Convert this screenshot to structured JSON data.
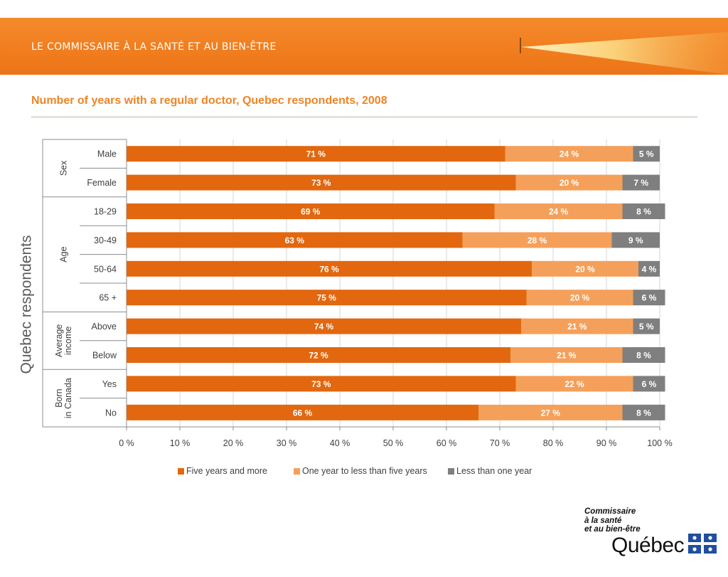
{
  "header": {
    "organization": "LE COMMISSAIRE À LA SANTÉ ET AU BIEN-ÊTRE"
  },
  "chart_data": {
    "type": "bar",
    "orientation": "horizontal",
    "stacked": true,
    "title": "Number of years with a regular doctor, Quebec respondents, 2008",
    "ylabel": "Quebec respondents",
    "groups": [
      {
        "name": "Sex",
        "categories": [
          "Male",
          "Female"
        ]
      },
      {
        "name": "Age",
        "categories": [
          "18-29",
          "30-49",
          "50-64",
          "65 +"
        ]
      },
      {
        "name": "Average income",
        "categories": [
          "Above",
          "Below"
        ]
      },
      {
        "name": "Born in Canada",
        "categories": [
          "Yes",
          "No"
        ]
      }
    ],
    "categories": [
      "Male",
      "Female",
      "18-29",
      "30-49",
      "50-64",
      "65 +",
      "Above",
      "Below",
      "Yes",
      "No"
    ],
    "series": [
      {
        "name": "Five years and more",
        "color": "#e2670f",
        "values": [
          71,
          73,
          69,
          63,
          76,
          75,
          74,
          72,
          73,
          66
        ]
      },
      {
        "name": "One year to less than five years",
        "color": "#f5a05a",
        "values": [
          24,
          20,
          24,
          28,
          20,
          20,
          21,
          21,
          22,
          27
        ]
      },
      {
        "name": "Less than one year",
        "color": "#7f7f7f",
        "values": [
          5,
          7,
          8,
          9,
          4,
          6,
          5,
          8,
          6,
          8
        ]
      }
    ],
    "xlim": [
      0,
      100
    ],
    "xticks": [
      "0 %",
      "10 %",
      "20 %",
      "30 %",
      "40 %",
      "50 %",
      "60 %",
      "70 %",
      "80 %",
      "90 %",
      "100 %"
    ],
    "value_suffix": " %",
    "grid": true,
    "legend_position": "bottom"
  },
  "branding": {
    "logo_lines": [
      "Commissaire",
      "à la santé",
      "et au bien-être"
    ],
    "wordmark": "Québec"
  }
}
